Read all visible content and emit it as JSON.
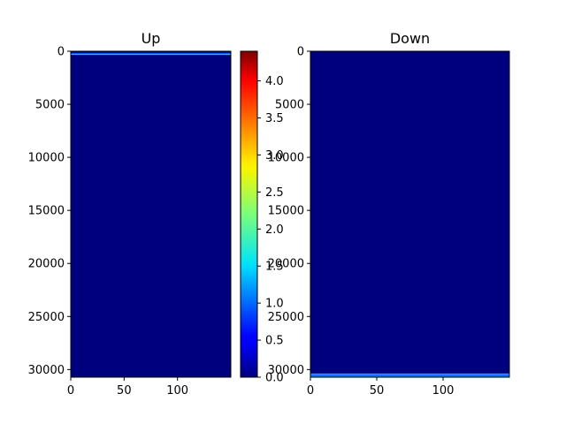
{
  "chart_data": [
    {
      "type": "heatmap",
      "title": "Up",
      "x_ticks": [
        0,
        50,
        100
      ],
      "y_ticks": [
        0,
        5000,
        10000,
        15000,
        20000,
        25000,
        30000
      ],
      "xlim": [
        0,
        150
      ],
      "ylim": [
        30720,
        0
      ],
      "background_value": 0.0,
      "highlight_rows": [
        {
          "y_start": 150,
          "y_end": 260,
          "value": 0.9
        },
        {
          "y_start": 260,
          "y_end": 320,
          "value": 1.6
        }
      ]
    },
    {
      "type": "heatmap",
      "title": "Down",
      "x_ticks": [
        0,
        50,
        100
      ],
      "y_ticks": [
        0,
        5000,
        10000,
        15000,
        20000,
        25000,
        30000
      ],
      "xlim": [
        0,
        150
      ],
      "ylim": [
        30720,
        0
      ],
      "background_value": 0.0,
      "highlight_rows": [
        {
          "y_start": 30380,
          "y_end": 30460,
          "value": 1.6
        },
        {
          "y_start": 30460,
          "y_end": 30580,
          "value": 0.9
        },
        {
          "y_start": 30580,
          "y_end": 30650,
          "value": 1.4
        }
      ]
    }
  ],
  "colorbar": {
    "colormap": "jet",
    "vmin": 0.0,
    "vmax": 4.4,
    "ticks": [
      "0.0",
      "0.5",
      "1.0",
      "1.5",
      "2.0",
      "2.5",
      "3.0",
      "3.5",
      "4.0"
    ]
  },
  "colors": {
    "jet_low": "#00007f",
    "jet_high": "#7f0000"
  }
}
